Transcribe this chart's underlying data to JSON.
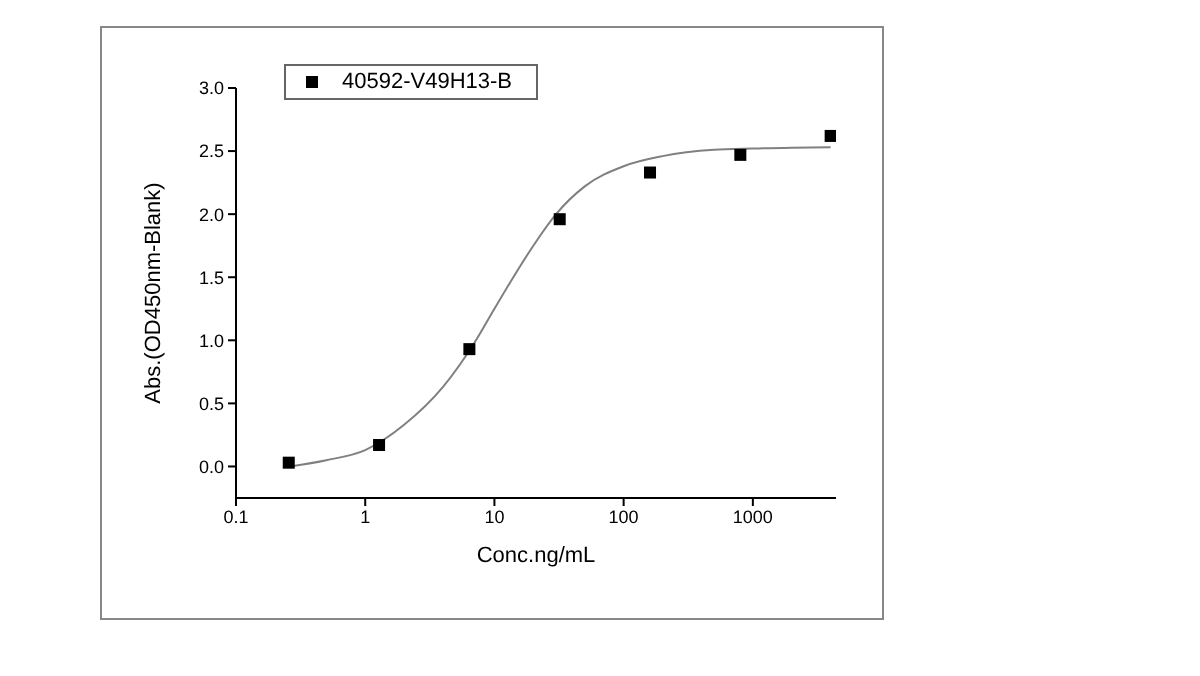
{
  "chart_data": {
    "type": "scatter",
    "xlabel": "Conc.ng/mL",
    "ylabel": "Abs.(OD450nm-Blank)",
    "log": "x",
    "xlim": [
      0.1,
      4400
    ],
    "xticks": [
      0.1,
      1,
      10,
      100,
      1000
    ],
    "ylim": [
      -0.25,
      3.0
    ],
    "yticks": [
      {
        "value": 0,
        "label": "0.0"
      },
      {
        "value": 0.5,
        "label": "0.5"
      },
      {
        "value": 1,
        "label": "1.0"
      },
      {
        "value": 1.5,
        "label": "1.5"
      },
      {
        "value": 2,
        "label": "2.0"
      },
      {
        "value": 2.5,
        "label": "2.5"
      },
      {
        "value": 3,
        "label": "3.0"
      }
    ],
    "grid": false,
    "legend": "top left",
    "series": [
      {
        "name": "40592-V49H13-B",
        "type": "scatter",
        "color": "#000000",
        "marker": "square",
        "x": [
          0.256,
          1.28,
          6.4,
          32,
          160,
          800,
          4000
        ],
        "values": [
          0.03,
          0.17,
          0.93,
          1.96,
          2.33,
          2.47,
          2.62
        ]
      },
      {
        "type": "line",
        "color": "#808080",
        "marker": "none",
        "line_style": "solid",
        "x": [
          0.26,
          0.5,
          1,
          2,
          4,
          7,
          10,
          15,
          20,
          30,
          50,
          100,
          200,
          500,
          1000,
          4000
        ],
        "values": [
          0.0,
          0.05,
          0.13,
          0.33,
          0.63,
          0.98,
          1.25,
          1.55,
          1.75,
          2.0,
          2.22,
          2.38,
          2.46,
          2.51,
          2.52,
          2.53
        ]
      }
    ]
  }
}
